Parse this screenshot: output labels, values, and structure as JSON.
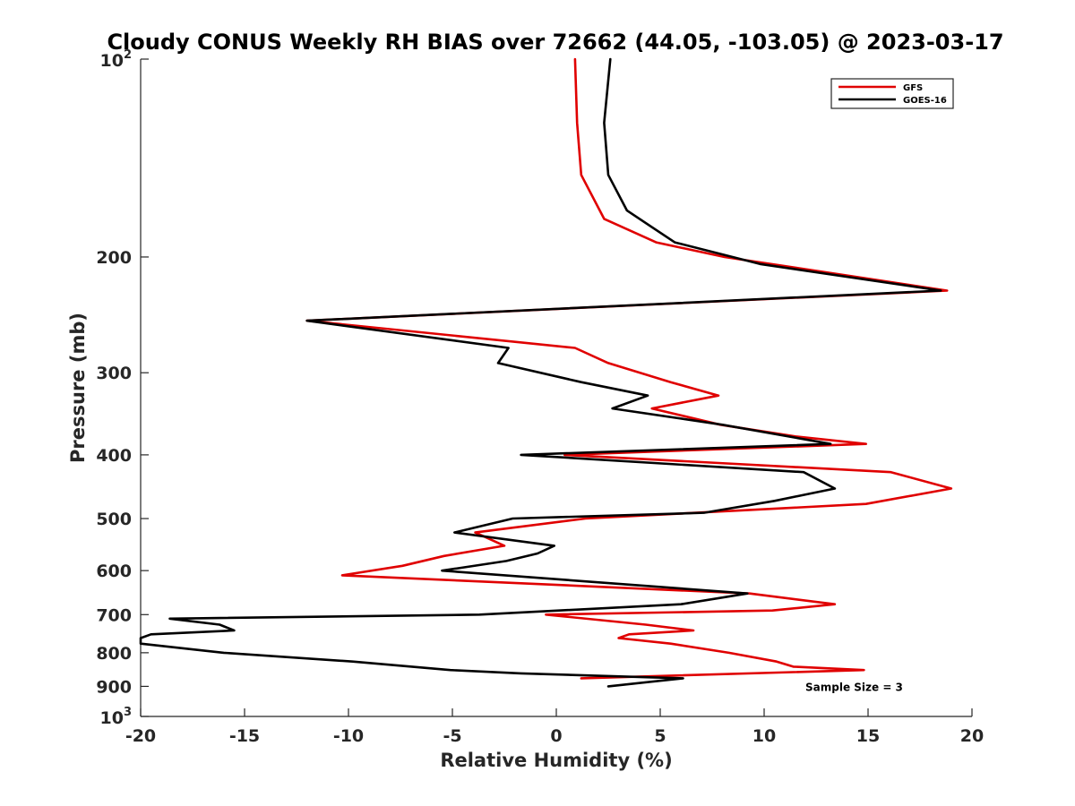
{
  "chart_data": {
    "type": "line",
    "title": "Cloudy CONUS Weekly RH BIAS over 72662 (44.05, -103.05) @ 2023-03-17",
    "xlabel": "Relative Humidity (%)",
    "ylabel": "Pressure (mb)",
    "xlim": [
      -20,
      20
    ],
    "ylim": [
      100,
      1000
    ],
    "y_scale": "log",
    "y_reversed": true,
    "x_ticks": [
      -20,
      -15,
      -10,
      -5,
      0,
      5,
      10,
      15,
      20
    ],
    "y_ticks": [
      {
        "value": 100,
        "base": "10",
        "exp": "2"
      },
      {
        "value": 200,
        "label": "200"
      },
      {
        "value": 300,
        "label": "300"
      },
      {
        "value": 400,
        "label": "400"
      },
      {
        "value": 500,
        "label": "500"
      },
      {
        "value": 600,
        "label": "600"
      },
      {
        "value": 700,
        "label": "700"
      },
      {
        "value": 800,
        "label": "800"
      },
      {
        "value": 900,
        "label": "900"
      },
      {
        "value": 1000,
        "base": "10",
        "exp": "3"
      }
    ],
    "grid": false,
    "legend_position": "top-right",
    "series": [
      {
        "name": "GFS",
        "color": "#e00000",
        "points": [
          [
            0.9,
            100
          ],
          [
            1.0,
            125
          ],
          [
            1.2,
            150
          ],
          [
            2.3,
            175
          ],
          [
            4.8,
            190
          ],
          [
            8.1,
            200
          ],
          [
            18.8,
            225
          ],
          [
            -12.0,
            250
          ],
          [
            0.9,
            275
          ],
          [
            2.5,
            290
          ],
          [
            5.5,
            310
          ],
          [
            7.8,
            325
          ],
          [
            4.6,
            340
          ],
          [
            7.9,
            360
          ],
          [
            11.5,
            375
          ],
          [
            14.9,
            385
          ],
          [
            0.4,
            400
          ],
          [
            16.1,
            425
          ],
          [
            19.0,
            450
          ],
          [
            14.9,
            475
          ],
          [
            1.4,
            500
          ],
          [
            -3.9,
            525
          ],
          [
            -2.5,
            550
          ],
          [
            -5.4,
            570
          ],
          [
            -7.4,
            590
          ],
          [
            -10.3,
            610
          ],
          [
            9.3,
            650
          ],
          [
            13.4,
            675
          ],
          [
            10.4,
            690
          ],
          [
            -0.5,
            700
          ],
          [
            4.3,
            725
          ],
          [
            6.6,
            740
          ],
          [
            3.5,
            750
          ],
          [
            3.0,
            760
          ],
          [
            5.5,
            775
          ],
          [
            8.3,
            800
          ],
          [
            10.6,
            825
          ],
          [
            11.4,
            840
          ],
          [
            14.8,
            850
          ],
          [
            1.2,
            875
          ]
        ]
      },
      {
        "name": "GOES-16",
        "color": "#000000",
        "points": [
          [
            2.6,
            100
          ],
          [
            2.3,
            125
          ],
          [
            2.5,
            150
          ],
          [
            3.4,
            170
          ],
          [
            5.7,
            190
          ],
          [
            9.8,
            205
          ],
          [
            18.5,
            225
          ],
          [
            -12.0,
            250
          ],
          [
            -2.3,
            275
          ],
          [
            -2.8,
            290
          ],
          [
            1.2,
            310
          ],
          [
            4.4,
            325
          ],
          [
            2.7,
            340
          ],
          [
            8.0,
            360
          ],
          [
            13.2,
            385
          ],
          [
            -1.7,
            400
          ],
          [
            11.9,
            425
          ],
          [
            13.4,
            450
          ],
          [
            10.5,
            470
          ],
          [
            7.1,
            490
          ],
          [
            -2.1,
            500
          ],
          [
            -4.9,
            525
          ],
          [
            -0.1,
            550
          ],
          [
            -0.9,
            565
          ],
          [
            -2.4,
            580
          ],
          [
            -5.5,
            600
          ],
          [
            9.2,
            650
          ],
          [
            6.0,
            675
          ],
          [
            -3.7,
            700
          ],
          [
            -18.6,
            710
          ],
          [
            -16.2,
            725
          ],
          [
            -15.5,
            740
          ],
          [
            -19.5,
            750
          ],
          [
            -20.0,
            760
          ],
          [
            -20.0,
            775
          ],
          [
            -16.0,
            800
          ],
          [
            -9.8,
            825
          ],
          [
            -5.1,
            850
          ],
          [
            -1.7,
            860
          ],
          [
            6.1,
            875
          ],
          [
            2.5,
            900
          ]
        ]
      }
    ],
    "annotations": [
      {
        "text": "Sample Size = 3",
        "x": 12.5,
        "y": 900
      }
    ]
  }
}
